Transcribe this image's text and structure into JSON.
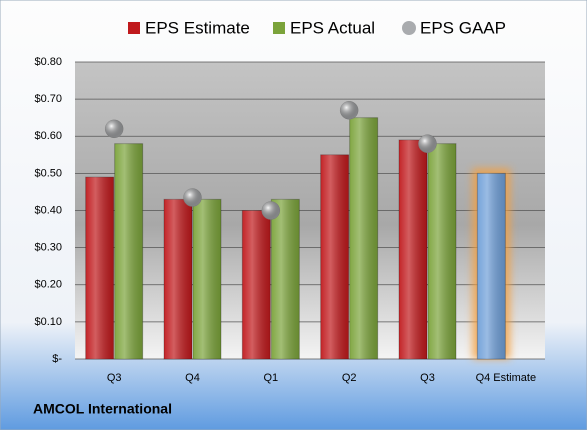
{
  "chart_data": {
    "type": "bar",
    "caption": "AMCOL International",
    "categories": [
      "Q3",
      "Q4",
      "Q1",
      "Q2",
      "Q3",
      "Q4 Estimate"
    ],
    "series": [
      {
        "name": "EPS Estimate",
        "colors": [
          "#c0191c",
          "#c0191c",
          "#c0191c",
          "#c0191c",
          "#c0191c",
          "#6f9fd8"
        ],
        "marker": "bar",
        "values": [
          0.49,
          0.43,
          0.4,
          0.55,
          0.59,
          0.5
        ]
      },
      {
        "name": "EPS Actual",
        "color": "#7ba33a",
        "marker": "bar",
        "values": [
          0.58,
          0.43,
          0.43,
          0.65,
          0.58,
          null
        ]
      },
      {
        "name": "EPS GAAP",
        "color": "#a9abae",
        "marker": "circle",
        "values": [
          0.62,
          0.435,
          0.4,
          0.67,
          0.58,
          null
        ]
      }
    ],
    "ylim": [
      0,
      0.8
    ],
    "yticks": [
      {
        "value": 0,
        "label": "$-"
      },
      {
        "value": 0.1,
        "label": "$0.10"
      },
      {
        "value": 0.2,
        "label": "$0.20"
      },
      {
        "value": 0.3,
        "label": "$0.30"
      },
      {
        "value": 0.4,
        "label": "$0.40"
      },
      {
        "value": 0.5,
        "label": "$0.50"
      },
      {
        "value": 0.6,
        "label": "$0.60"
      },
      {
        "value": 0.7,
        "label": "$0.70"
      },
      {
        "value": 0.8,
        "label": "$0.80"
      }
    ],
    "grid": true
  }
}
